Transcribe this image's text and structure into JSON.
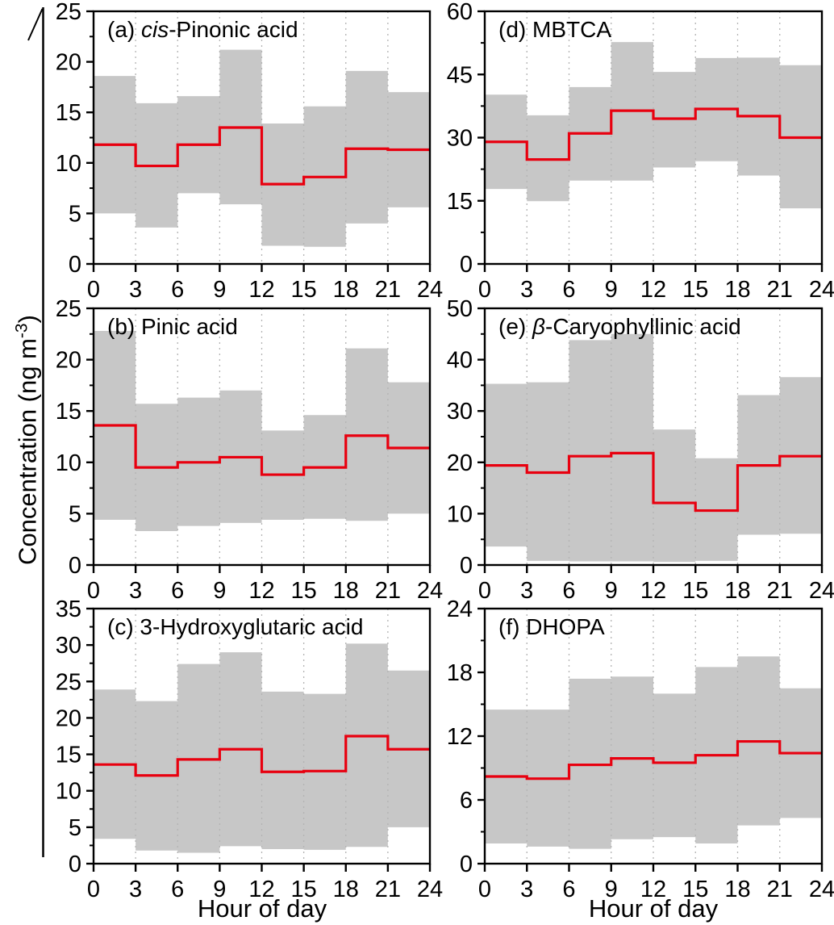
{
  "figure": {
    "ylabel": {
      "pre": "Concentration (ng m",
      "sup": "-3",
      "post": ")"
    },
    "xlabel_left": "Hour of day",
    "xlabel_right": "Hour of day"
  },
  "colors": {
    "band": "#c7c7c7",
    "line": "#e8000f",
    "grid": "#b3b3b3",
    "axis": "#000000",
    "background": "#ffffff"
  },
  "chart_data": [
    {
      "id": "a",
      "type": "step-line-with-band",
      "title": {
        "pre": "(a) ",
        "italic": "cis",
        "post": "-Pinonic acid"
      },
      "ylim": [
        0,
        25
      ],
      "yticks": [
        0,
        5,
        10,
        15,
        20,
        25
      ],
      "xlim": [
        0,
        24
      ],
      "xticks": [
        0,
        3,
        6,
        9,
        12,
        15,
        18,
        21,
        24
      ],
      "bin_edges": [
        0,
        3,
        6,
        9,
        12,
        15,
        18,
        21,
        24
      ],
      "mean": [
        11.8,
        9.7,
        11.8,
        13.5,
        7.9,
        8.6,
        11.4,
        11.3
      ],
      "band_upper": [
        18.6,
        15.9,
        16.6,
        21.2,
        13.9,
        15.6,
        19.1,
        17.0
      ],
      "band_lower": [
        5.0,
        3.6,
        7.0,
        5.9,
        1.8,
        1.7,
        4.0,
        5.6
      ]
    },
    {
      "id": "b",
      "type": "step-line-with-band",
      "title": {
        "pre": "(b) Pinic acid",
        "italic": "",
        "post": ""
      },
      "ylim": [
        0,
        25
      ],
      "yticks": [
        0,
        5,
        10,
        15,
        20,
        25
      ],
      "xlim": [
        0,
        24
      ],
      "xticks": [
        0,
        3,
        6,
        9,
        12,
        15,
        18,
        21,
        24
      ],
      "bin_edges": [
        0,
        3,
        6,
        9,
        12,
        15,
        18,
        21,
        24
      ],
      "mean": [
        13.6,
        9.5,
        10.0,
        10.5,
        8.8,
        9.5,
        12.6,
        11.4
      ],
      "band_upper": [
        22.8,
        15.7,
        16.3,
        17.0,
        13.1,
        14.6,
        21.1,
        17.8
      ],
      "band_lower": [
        4.4,
        3.3,
        3.8,
        4.1,
        4.4,
        4.5,
        4.3,
        5.0
      ]
    },
    {
      "id": "c",
      "type": "step-line-with-band",
      "title": {
        "pre": "(c) 3-Hydroxyglutaric acid",
        "italic": "",
        "post": ""
      },
      "ylim": [
        0,
        35
      ],
      "yticks": [
        0,
        5,
        10,
        15,
        20,
        25,
        30,
        35
      ],
      "xlim": [
        0,
        24
      ],
      "xticks": [
        0,
        3,
        6,
        9,
        12,
        15,
        18,
        21,
        24
      ],
      "bin_edges": [
        0,
        3,
        6,
        9,
        12,
        15,
        18,
        21,
        24
      ],
      "mean": [
        13.6,
        12.1,
        14.3,
        15.7,
        12.6,
        12.7,
        17.5,
        15.7
      ],
      "band_upper": [
        23.9,
        22.3,
        27.4,
        29.0,
        23.6,
        23.3,
        30.2,
        26.5
      ],
      "band_lower": [
        3.4,
        1.8,
        1.5,
        2.4,
        2.0,
        1.9,
        2.3,
        5.0
      ]
    },
    {
      "id": "d",
      "type": "step-line-with-band",
      "title": {
        "pre": "(d) MBTCA",
        "italic": "",
        "post": ""
      },
      "ylim": [
        0,
        60
      ],
      "yticks": [
        0,
        15,
        30,
        45,
        60
      ],
      "xlim": [
        0,
        24
      ],
      "xticks": [
        0,
        3,
        6,
        9,
        12,
        15,
        18,
        21,
        24
      ],
      "bin_edges": [
        0,
        3,
        6,
        9,
        12,
        15,
        18,
        21,
        24
      ],
      "mean": [
        29.0,
        24.8,
        31.0,
        36.4,
        34.5,
        36.8,
        35.1,
        30.0
      ],
      "band_upper": [
        40.2,
        35.3,
        42.0,
        52.7,
        45.6,
        48.9,
        49.0,
        47.2
      ],
      "band_lower": [
        17.8,
        14.9,
        19.8,
        19.8,
        22.9,
        24.4,
        21.0,
        13.2
      ]
    },
    {
      "id": "e",
      "type": "step-line-with-band",
      "title": {
        "pre": "(e) ",
        "italic": "β",
        "post": "-Caryophyllinic acid"
      },
      "ylim": [
        0,
        50
      ],
      "yticks": [
        0,
        10,
        20,
        30,
        40,
        50
      ],
      "xlim": [
        0,
        24
      ],
      "xticks": [
        0,
        3,
        6,
        9,
        12,
        15,
        18,
        21,
        24
      ],
      "bin_edges": [
        0,
        3,
        6,
        9,
        12,
        15,
        18,
        21,
        24
      ],
      "mean": [
        19.4,
        18.0,
        21.2,
        21.8,
        12.1,
        10.6,
        19.4,
        21.2
      ],
      "band_upper": [
        35.3,
        35.6,
        43.8,
        45.0,
        26.4,
        20.8,
        33.1,
        36.6
      ],
      "band_lower": [
        3.6,
        0.8,
        0.7,
        0.7,
        0.6,
        0.8,
        5.9,
        6.1
      ]
    },
    {
      "id": "f",
      "type": "step-line-with-band",
      "title": {
        "pre": "(f) DHOPA",
        "italic": "",
        "post": ""
      },
      "ylim": [
        0,
        24
      ],
      "yticks": [
        0,
        6,
        12,
        18,
        24
      ],
      "xlim": [
        0,
        24
      ],
      "xticks": [
        0,
        3,
        6,
        9,
        12,
        15,
        18,
        21,
        24
      ],
      "bin_edges": [
        0,
        3,
        6,
        9,
        12,
        15,
        18,
        21,
        24
      ],
      "mean": [
        8.2,
        8.0,
        9.3,
        9.9,
        9.5,
        10.2,
        11.5,
        10.4
      ],
      "band_upper": [
        14.5,
        14.5,
        17.4,
        17.6,
        16.0,
        18.5,
        19.5,
        16.5
      ],
      "band_lower": [
        1.9,
        1.6,
        1.4,
        2.3,
        2.5,
        1.9,
        3.6,
        4.3
      ]
    }
  ]
}
